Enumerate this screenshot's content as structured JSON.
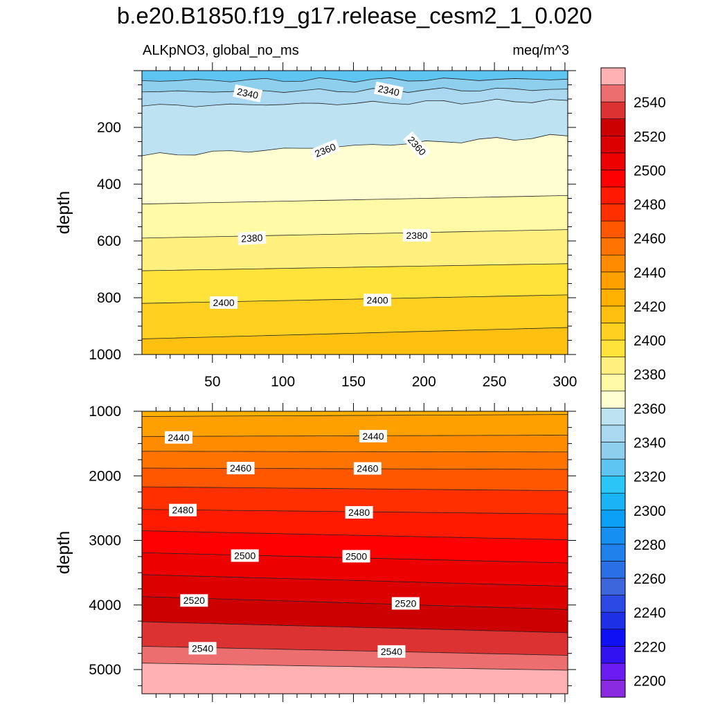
{
  "title": "b.e20.B1850.f19_g17.release_cesm2_1_0.020",
  "subtitle_left": "ALKpNO3, global_no_ms",
  "subtitle_right": "meq/m^3",
  "colors": {
    "levels": [
      "#8a2be2",
      "#6a1cf0",
      "#3312f2",
      "#1010f5",
      "#1e30e6",
      "#2a4ae3",
      "#3d66dc",
      "#2a6fe6",
      "#2080ec",
      "#1590f2",
      "#0aa0f6",
      "#18b4f5",
      "#2ac6f8",
      "#5ec4f2",
      "#8ecfee",
      "#a9d8f0",
      "#bde3f3",
      "#fffed0",
      "#fffaa6",
      "#fff080",
      "#ffe23a",
      "#ffd020",
      "#ffc010",
      "#ffb000",
      "#ffa000",
      "#ff8c00",
      "#ff7400",
      "#ff5600",
      "#ff3000",
      "#ff1a00",
      "#ff0000",
      "#ec0000",
      "#dc0000",
      "#cc0000",
      "#dc3232",
      "#ec6e6e",
      "#ffb0b0"
    ]
  },
  "chart_data": [
    {
      "type": "heatmap",
      "panel": "upper",
      "x": {
        "range": [
          0,
          302
        ],
        "ticks": [
          50,
          100,
          150,
          200,
          250,
          300
        ],
        "show_tick_labels": true
      },
      "y": {
        "label": "depth",
        "range": [
          0,
          1000
        ],
        "inverted": true,
        "ticks": [
          200,
          400,
          600,
          800,
          1000
        ]
      },
      "contour_lines": [
        {
          "level": 2330,
          "depth_left": 35,
          "depth_right": 30
        },
        {
          "level": 2340,
          "depth_left": 75,
          "depth_right": 65
        },
        {
          "level": 2350,
          "depth_left": 125,
          "depth_right": 105
        },
        {
          "level": 2360,
          "depth_left": 300,
          "depth_right": 230
        },
        {
          "level": 2370,
          "depth_left": 470,
          "depth_right": 440
        },
        {
          "level": 2380,
          "depth_left": 590,
          "depth_right": 560
        },
        {
          "level": 2390,
          "depth_left": 705,
          "depth_right": 680
        },
        {
          "level": 2400,
          "depth_left": 820,
          "depth_right": 790
        },
        {
          "level": 2410,
          "depth_left": 945,
          "depth_right": 905
        }
      ],
      "contour_labels": [
        {
          "text": "2340",
          "x": 75,
          "depth": 80,
          "angle": 12
        },
        {
          "text": "2340",
          "x": 175,
          "depth": 70,
          "angle": 12
        },
        {
          "text": "2360",
          "x": 130,
          "depth": 280,
          "angle": -22
        },
        {
          "text": "2360",
          "x": 195,
          "depth": 265,
          "angle": 48
        },
        {
          "text": "2380",
          "x": 78,
          "depth": 590,
          "angle": -3
        },
        {
          "text": "2380",
          "x": 195,
          "depth": 580,
          "angle": 0
        },
        {
          "text": "2400",
          "x": 58,
          "depth": 817,
          "angle": 0
        },
        {
          "text": "2400",
          "x": 167,
          "depth": 808,
          "angle": 0
        }
      ]
    },
    {
      "type": "heatmap",
      "panel": "lower",
      "x": {
        "range": [
          0,
          302
        ],
        "ticks": [
          50,
          100,
          150,
          200,
          250,
          300
        ],
        "show_tick_labels": false
      },
      "y": {
        "label": "depth",
        "range": [
          1000,
          5375
        ],
        "inverted": true,
        "ticks": [
          1000,
          2000,
          3000,
          4000,
          5000
        ]
      },
      "contour_lines": [
        {
          "level": 2430,
          "depth_left": 1080,
          "depth_right": 1050
        },
        {
          "level": 2440,
          "depth_left": 1390,
          "depth_right": 1370
        },
        {
          "level": 2450,
          "depth_left": 1620,
          "depth_right": 1630
        },
        {
          "level": 2460,
          "depth_left": 1880,
          "depth_right": 1900
        },
        {
          "level": 2470,
          "depth_left": 2170,
          "depth_right": 2230
        },
        {
          "level": 2480,
          "depth_left": 2520,
          "depth_right": 2590
        },
        {
          "level": 2490,
          "depth_left": 2850,
          "depth_right": 2990
        },
        {
          "level": 2500,
          "depth_left": 3190,
          "depth_right": 3350
        },
        {
          "level": 2510,
          "depth_left": 3530,
          "depth_right": 3710
        },
        {
          "level": 2520,
          "depth_left": 3870,
          "depth_right": 4070
        },
        {
          "level": 2530,
          "depth_left": 4260,
          "depth_right": 4430
        },
        {
          "level": 2540,
          "depth_left": 4640,
          "depth_right": 4780
        },
        {
          "level": 2550,
          "depth_left": 4900,
          "depth_right": 5010
        }
      ],
      "contour_labels": [
        {
          "text": "2440",
          "x": 26,
          "depth": 1405,
          "angle": 0
        },
        {
          "text": "2440",
          "x": 164,
          "depth": 1385,
          "angle": 0
        },
        {
          "text": "2460",
          "x": 70,
          "depth": 1880,
          "angle": 0
        },
        {
          "text": "2460",
          "x": 160,
          "depth": 1885,
          "angle": 0
        },
        {
          "text": "2480",
          "x": 29,
          "depth": 2530,
          "angle": 0
        },
        {
          "text": "2480",
          "x": 154,
          "depth": 2565,
          "angle": 0
        },
        {
          "text": "2500",
          "x": 73,
          "depth": 3235,
          "angle": 0
        },
        {
          "text": "2500",
          "x": 152,
          "depth": 3245,
          "angle": 0
        },
        {
          "text": "2520",
          "x": 37,
          "depth": 3930,
          "angle": 0
        },
        {
          "text": "2520",
          "x": 187,
          "depth": 3975,
          "angle": 0
        },
        {
          "text": "2540",
          "x": 43,
          "depth": 4670,
          "angle": 0
        },
        {
          "text": "2540",
          "x": 177,
          "depth": 4720,
          "angle": 0
        }
      ]
    }
  ],
  "colorbar": {
    "levels": [
      2190,
      2200,
      2210,
      2220,
      2230,
      2240,
      2250,
      2260,
      2270,
      2280,
      2290,
      2300,
      2310,
      2320,
      2330,
      2340,
      2350,
      2360,
      2370,
      2380,
      2390,
      2400,
      2410,
      2420,
      2430,
      2440,
      2450,
      2460,
      2470,
      2480,
      2490,
      2500,
      2510,
      2520,
      2530,
      2540,
      2550,
      2560
    ],
    "labels": [
      "2200",
      "2220",
      "2240",
      "2260",
      "2280",
      "2300",
      "2320",
      "2340",
      "2360",
      "2380",
      "2400",
      "2420",
      "2440",
      "2460",
      "2480",
      "2500",
      "2520",
      "2540"
    ]
  }
}
